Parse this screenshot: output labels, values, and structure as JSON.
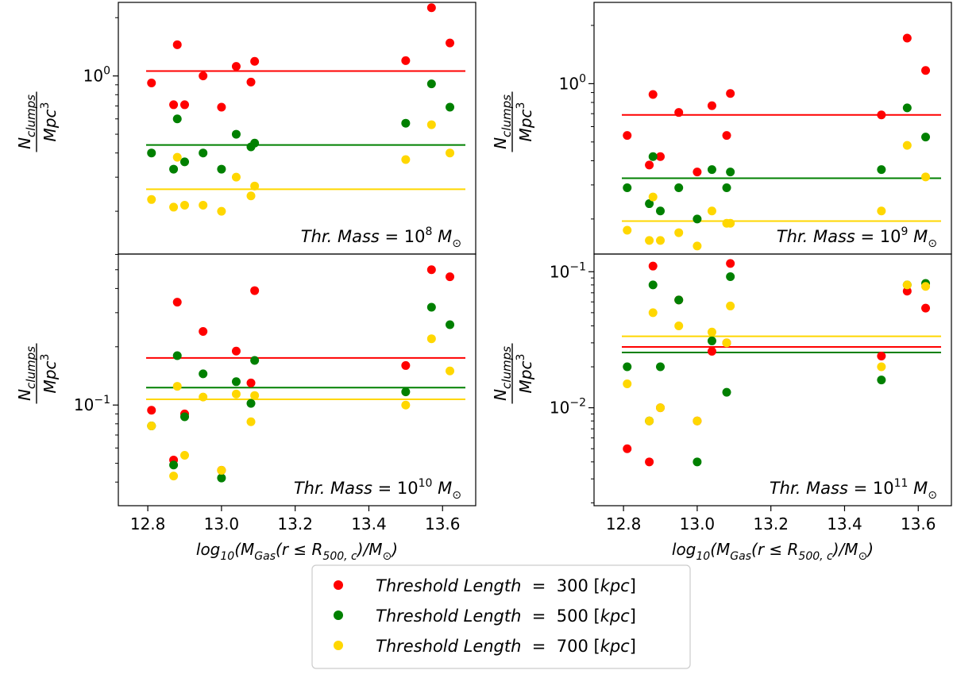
{
  "colors": {
    "series_300": "#ff0000",
    "series_500": "#008000",
    "series_700": "#ffd700"
  },
  "legend": [
    {
      "name": "Threshold Length",
      "value": "300",
      "unit": "kpc",
      "color_key": "series_300"
    },
    {
      "name": "Threshold Length",
      "value": "500",
      "unit": "kpc",
      "color_key": "series_500"
    },
    {
      "name": "Threshold Length",
      "value": "700",
      "unit": "kpc",
      "color_key": "series_700"
    }
  ],
  "chart_data": [
    {
      "type": "scatter",
      "id": "p1",
      "title": "Thr. Mass = 10^8 M⊙",
      "label_prefix": "Thr. Mass",
      "label_eq": "=",
      "label_base": "10",
      "label_exp": "8",
      "label_unit": "M",
      "label_sub": "⊙",
      "ylabel": "N_clumps / Mpc^3",
      "ylabel_num": "N",
      "ylabel_num_sub": "clumps",
      "ylabel_den": "Mpc",
      "ylabel_den_sup": "3",
      "xlabel": "",
      "xlim": [
        12.72,
        13.69
      ],
      "ylim_log10": [
        -0.92,
        0.38
      ],
      "yscale": "log",
      "yticks": [
        {
          "log10": 0,
          "base": "10",
          "exp": "0"
        }
      ],
      "x": [
        12.81,
        12.87,
        12.88,
        12.9,
        12.95,
        13.0,
        13.04,
        13.08,
        13.09,
        13.5,
        13.57,
        13.62
      ],
      "series": [
        {
          "name": "Threshold Length = 300 [kpc]",
          "color_key": "series_300",
          "mean": 1.06,
          "values": [
            0.92,
            0.71,
            1.45,
            0.71,
            1.0,
            0.69,
            1.12,
            0.93,
            1.19,
            1.2,
            2.25,
            1.48
          ]
        },
        {
          "name": "Threshold Length = 500 [kpc]",
          "color_key": "series_500",
          "mean": 0.44,
          "values": [
            0.4,
            0.33,
            0.6,
            0.36,
            0.4,
            0.33,
            0.5,
            0.43,
            0.45,
            0.57,
            0.91,
            0.69
          ]
        },
        {
          "name": "Threshold Length = 700 [kpc]",
          "color_key": "series_700",
          "mean": 0.26,
          "values": [
            0.23,
            0.21,
            0.38,
            0.215,
            0.215,
            0.2,
            0.3,
            0.24,
            0.27,
            0.37,
            0.56,
            0.4
          ]
        }
      ]
    },
    {
      "type": "scatter",
      "id": "p2",
      "title": "Thr. Mass = 10^9 M⊙",
      "label_prefix": "Thr. Mass",
      "label_eq": "=",
      "label_base": "10",
      "label_exp": "9",
      "label_unit": "M",
      "label_sub": "⊙",
      "ylabel": "N_clumps / Mpc^3",
      "ylabel_num": "N",
      "ylabel_num_sub": "clumps",
      "ylabel_den": "Mpc",
      "ylabel_den_sup": "3",
      "xlabel": "",
      "xlim": [
        12.72,
        13.69
      ],
      "ylim_log10": [
        -0.88,
        0.42
      ],
      "yscale": "log",
      "yticks": [
        {
          "log10": 0,
          "base": "10",
          "exp": "0"
        }
      ],
      "x": [
        12.81,
        12.87,
        12.88,
        12.9,
        12.95,
        13.0,
        13.04,
        13.08,
        13.09,
        13.5,
        13.57,
        13.62
      ],
      "series": [
        {
          "name": "Threshold Length = 300 [kpc]",
          "color_key": "series_300",
          "mean": 0.69,
          "values": [
            0.54,
            0.38,
            0.88,
            0.42,
            0.71,
            0.35,
            0.77,
            0.54,
            0.89,
            0.69,
            1.72,
            1.17
          ]
        },
        {
          "name": "Threshold Length = 500 [kpc]",
          "color_key": "series_500",
          "mean": 0.325,
          "values": [
            0.29,
            0.24,
            0.42,
            0.22,
            0.29,
            0.2,
            0.36,
            0.29,
            0.35,
            0.36,
            0.75,
            0.53
          ]
        },
        {
          "name": "Threshold Length = 700 [kpc]",
          "color_key": "series_700",
          "mean": 0.195,
          "values": [
            0.175,
            0.155,
            0.26,
            0.155,
            0.17,
            0.145,
            0.22,
            0.19,
            0.19,
            0.22,
            0.48,
            0.33
          ]
        }
      ]
    },
    {
      "type": "scatter",
      "id": "p3",
      "title": "Thr. Mass = 10^10 M⊙",
      "label_prefix": "Thr. Mass",
      "label_eq": "=",
      "label_base": "10",
      "label_exp": "10",
      "label_unit": "M",
      "label_sub": "⊙",
      "ylabel": "N_clumps / Mpc^3",
      "ylabel_num": "N",
      "ylabel_num_sub": "clumps",
      "ylabel_den": "Mpc",
      "ylabel_den_sup": "3",
      "xlabel": "log10(M_Gas(r ≤ R_500,c)/M⊙)",
      "xlim": [
        12.72,
        13.69
      ],
      "ylim_log10": [
        -1.52,
        -0.22
      ],
      "yscale": "log",
      "yticks": [
        {
          "log10": -1,
          "base": "10",
          "exp": "−1"
        }
      ],
      "x": [
        12.81,
        12.87,
        12.88,
        12.9,
        12.95,
        13.0,
        13.04,
        13.08,
        13.09,
        13.5,
        13.57,
        13.62
      ],
      "series": [
        {
          "name": "Threshold Length = 300 [kpc]",
          "color_key": "series_300",
          "mean": 0.175,
          "values": [
            0.094,
            0.052,
            0.34,
            0.09,
            0.24,
            0.046,
            0.19,
            0.13,
            0.39,
            0.16,
            0.5,
            0.46
          ]
        },
        {
          "name": "Threshold Length = 500 [kpc]",
          "color_key": "series_500",
          "mean": 0.123,
          "values": [
            0.078,
            0.049,
            0.18,
            0.087,
            0.145,
            0.042,
            0.132,
            0.102,
            0.17,
            0.117,
            0.32,
            0.26
          ]
        },
        {
          "name": "Threshold Length = 700 [kpc]",
          "color_key": "series_700",
          "mean": 0.107,
          "values": [
            0.078,
            0.043,
            0.125,
            0.055,
            0.11,
            0.046,
            0.114,
            0.082,
            0.112,
            0.1,
            0.22,
            0.15
          ]
        }
      ]
    },
    {
      "type": "scatter",
      "id": "p4",
      "title": "Thr. Mass = 10^11 M⊙",
      "label_prefix": "Thr. Mass",
      "label_eq": "=",
      "label_base": "10",
      "label_exp": "11",
      "label_unit": "M",
      "label_sub": "⊙",
      "ylabel": "N_clumps / Mpc^3",
      "ylabel_num": "N",
      "ylabel_num_sub": "clumps",
      "ylabel_den": "Mpc",
      "ylabel_den_sup": "3",
      "xlabel": "log10(M_Gas(r ≤ R_500,c)/M⊙)",
      "xlim": [
        12.72,
        13.69
      ],
      "ylim_log10": [
        -2.72,
        -0.87
      ],
      "yscale": "log",
      "yticks": [
        {
          "log10": -1,
          "base": "10",
          "exp": "−1"
        },
        {
          "log10": -2,
          "base": "10",
          "exp": "−2"
        }
      ],
      "x": [
        12.81,
        12.87,
        12.88,
        12.9,
        12.95,
        13.0,
        13.04,
        13.08,
        13.09,
        13.5,
        13.57,
        13.62
      ],
      "series": [
        {
          "name": "Threshold Length = 300 [kpc]",
          "color_key": "series_300",
          "mean": 0.028,
          "values": [
            0.005,
            0.004,
            0.11,
            0.01,
            0.062,
            0.008,
            0.026,
            0.03,
            0.115,
            0.024,
            0.072,
            0.054
          ]
        },
        {
          "name": "Threshold Length = 500 [kpc]",
          "color_key": "series_500",
          "mean": 0.0255,
          "values": [
            0.02,
            0.008,
            0.08,
            0.02,
            0.062,
            0.004,
            0.031,
            0.013,
            0.092,
            0.016,
            0.08,
            0.082
          ]
        },
        {
          "name": "Threshold Length = 700 [kpc]",
          "color_key": "series_700",
          "mean": 0.0335,
          "values": [
            0.015,
            0.008,
            0.05,
            0.01,
            0.04,
            0.008,
            0.036,
            0.03,
            0.056,
            0.02,
            0.08,
            0.078
          ]
        }
      ]
    }
  ],
  "x_axis": {
    "ticks": [
      "12.8",
      "13.0",
      "13.2",
      "13.4",
      "13.6"
    ],
    "tick_values": [
      12.8,
      13.0,
      13.2,
      13.4,
      13.6
    ],
    "label_log": "log",
    "label_log_sub": "10",
    "label_open": "(M",
    "label_gas_sub": "Gas",
    "label_mid": "(r ≤ R",
    "label_r_sub": "500, c",
    "label_close": ")/M",
    "label_sun_sub": "⊙",
    "label_end": ")"
  }
}
